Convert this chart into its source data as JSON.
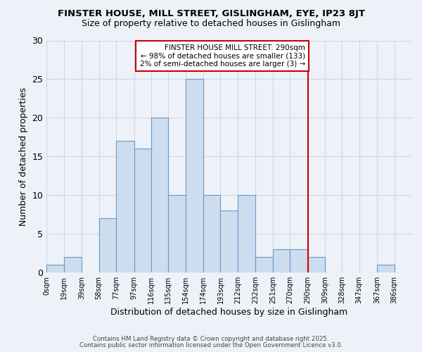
{
  "title": "FINSTER HOUSE, MILL STREET, GISLINGHAM, EYE, IP23 8JT",
  "subtitle": "Size of property relative to detached houses in Gislingham",
  "xlabel": "Distribution of detached houses by size in Gislingham",
  "ylabel": "Number of detached properties",
  "bin_edges": [
    0,
    19,
    39,
    58,
    77,
    97,
    116,
    135,
    154,
    174,
    193,
    212,
    232,
    251,
    270,
    290,
    309,
    328,
    347,
    367,
    386
  ],
  "bar_heights": [
    1,
    2,
    0,
    7,
    17,
    16,
    20,
    10,
    25,
    10,
    8,
    10,
    2,
    3,
    3,
    2,
    0,
    0,
    0,
    1
  ],
  "bar_color": "#ccddef",
  "bar_edgecolor": "#6699cc",
  "vline_x": 290,
  "vline_color": "#cc0000",
  "annotation_line1": "FINSTER HOUSE MILL STREET: 290sqm",
  "annotation_line2": "← 98% of detached houses are smaller (133)",
  "annotation_line3": "2% of semi-detached houses are larger (3) →",
  "annotation_box_edgecolor": "#cc0000",
  "annotation_fontsize": 7.5,
  "xlim": [
    0,
    405
  ],
  "ylim": [
    0,
    30
  ],
  "yticks": [
    0,
    5,
    10,
    15,
    20,
    25,
    30
  ],
  "xtick_labels": [
    "0sqm",
    "19sqm",
    "39sqm",
    "58sqm",
    "77sqm",
    "97sqm",
    "116sqm",
    "135sqm",
    "154sqm",
    "174sqm",
    "193sqm",
    "212sqm",
    "232sqm",
    "251sqm",
    "270sqm",
    "290sqm",
    "309sqm",
    "328sqm",
    "347sqm",
    "367sqm",
    "386sqm"
  ],
  "xtick_positions": [
    0,
    19,
    39,
    58,
    77,
    97,
    116,
    135,
    154,
    174,
    193,
    212,
    232,
    251,
    270,
    290,
    309,
    328,
    347,
    367,
    386
  ],
  "grid_color": "#c8d8e8",
  "bg_color": "#eef2f8",
  "footnote1": "Contains HM Land Registry data © Crown copyright and database right 2025.",
  "footnote2": "Contains public sector information licensed under the Open Government Licence v3.0."
}
